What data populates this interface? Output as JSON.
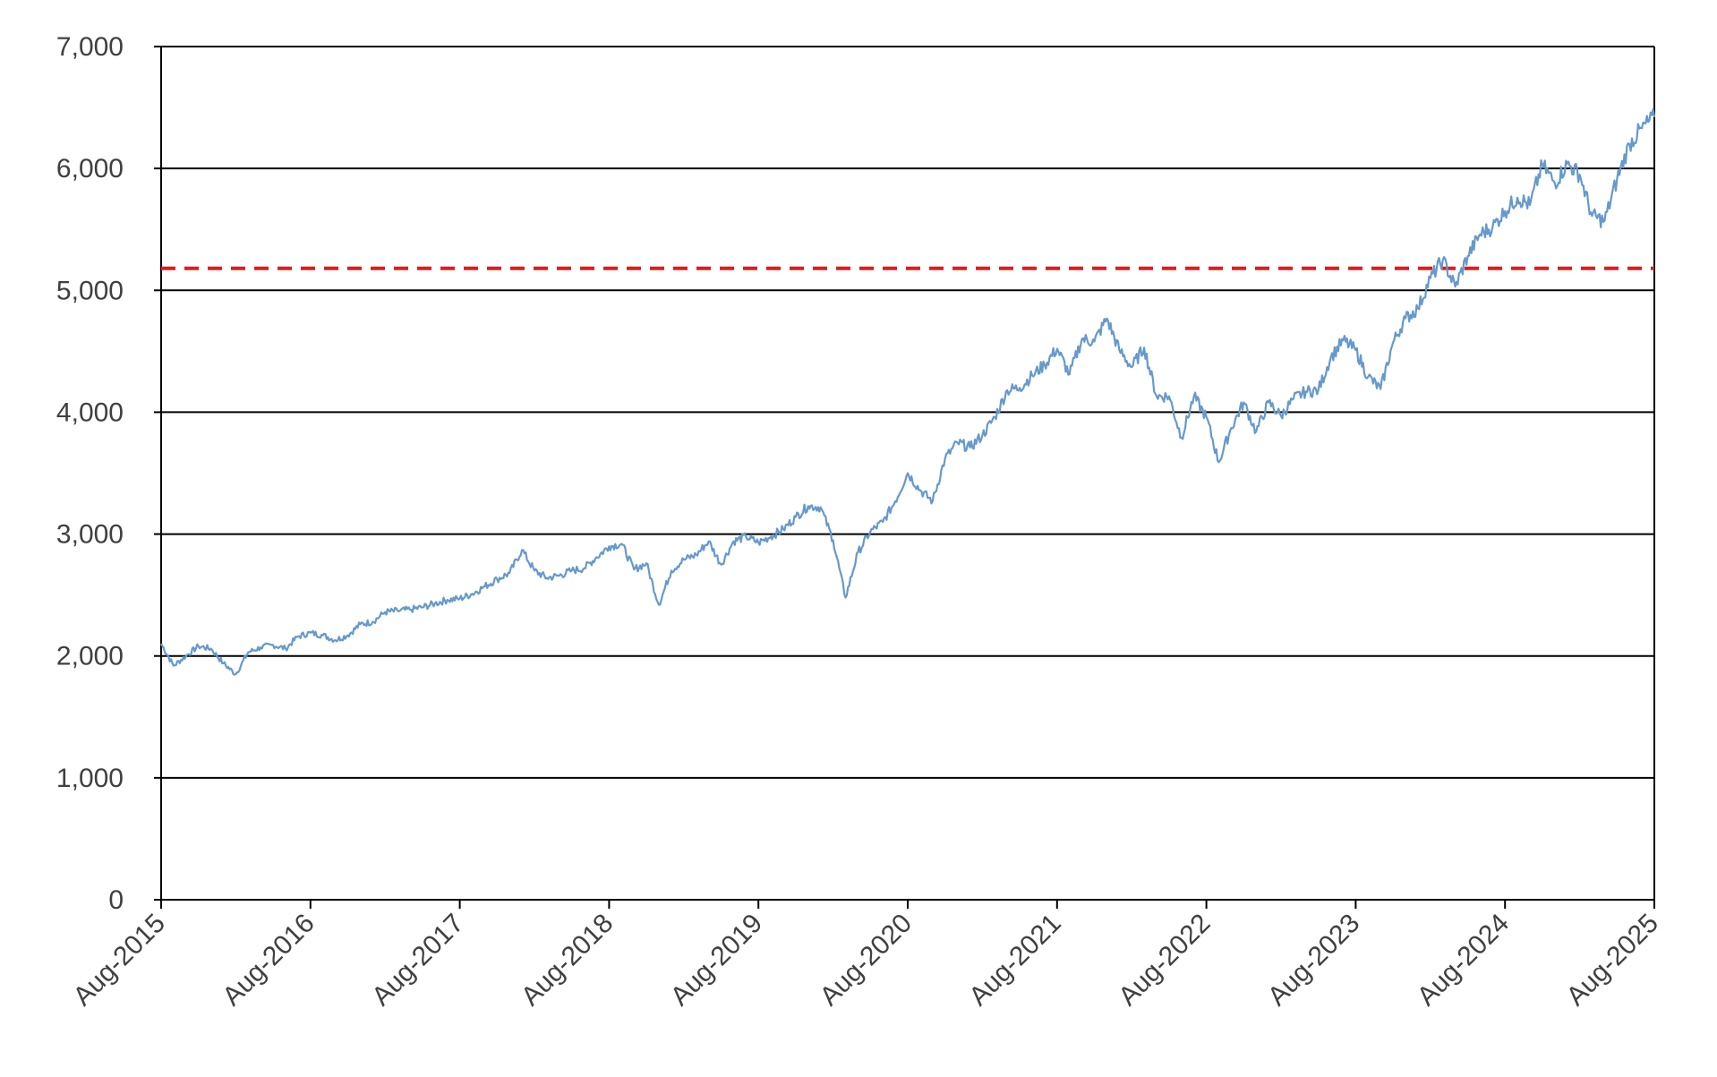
{
  "chart_data": {
    "type": "line",
    "title": "",
    "xlabel": "",
    "ylabel": "",
    "ylim": [
      0,
      7000
    ],
    "xlim": [
      "Aug-2015",
      "Aug-2025"
    ],
    "grid": "horizontal",
    "legend": "none",
    "y_ticks": [
      0,
      1000,
      2000,
      3000,
      4000,
      5000,
      6000,
      7000
    ],
    "y_tick_labels": [
      "0",
      "1,000",
      "2,000",
      "3,000",
      "4,000",
      "5,000",
      "6,000",
      "7,000"
    ],
    "x_tick_labels": [
      "Aug-2015",
      "Aug-2016",
      "Aug-2017",
      "Aug-2018",
      "Aug-2019",
      "Aug-2020",
      "Aug-2021",
      "Aug-2022",
      "Aug-2023",
      "Aug-2024",
      "Aug-2025"
    ],
    "reference_line": {
      "value": 5180,
      "color": "#d42020",
      "style": "dashed"
    },
    "series": [
      {
        "color": "#6699cc",
        "x": [
          "2015-08",
          "2015-09",
          "2015-10",
          "2015-11",
          "2015-12",
          "2016-01",
          "2016-02",
          "2016-03",
          "2016-04",
          "2016-05",
          "2016-06",
          "2016-07",
          "2016-08",
          "2016-09",
          "2016-10",
          "2016-11",
          "2016-12",
          "2017-01",
          "2017-02",
          "2017-03",
          "2017-04",
          "2017-05",
          "2017-06",
          "2017-07",
          "2017-08",
          "2017-09",
          "2017-10",
          "2017-11",
          "2017-12",
          "2018-01",
          "2018-02",
          "2018-03",
          "2018-04",
          "2018-05",
          "2018-06",
          "2018-07",
          "2018-08",
          "2018-09",
          "2018-10",
          "2018-11",
          "2018-12",
          "2019-01",
          "2019-02",
          "2019-03",
          "2019-04",
          "2019-05",
          "2019-06",
          "2019-07",
          "2019-08",
          "2019-09",
          "2019-10",
          "2019-11",
          "2019-12",
          "2020-01",
          "2020-02",
          "2020-03",
          "2020-04",
          "2020-05",
          "2020-06",
          "2020-07",
          "2020-08",
          "2020-09",
          "2020-10",
          "2020-11",
          "2020-12",
          "2021-01",
          "2021-02",
          "2021-03",
          "2021-04",
          "2021-05",
          "2021-06",
          "2021-07",
          "2021-08",
          "2021-09",
          "2021-10",
          "2021-11",
          "2021-12",
          "2022-01",
          "2022-02",
          "2022-03",
          "2022-04",
          "2022-05",
          "2022-06",
          "2022-07",
          "2022-08",
          "2022-09",
          "2022-10",
          "2022-11",
          "2022-12",
          "2023-01",
          "2023-02",
          "2023-03",
          "2023-04",
          "2023-05",
          "2023-06",
          "2023-07",
          "2023-08",
          "2023-09",
          "2023-10",
          "2023-11",
          "2023-12",
          "2024-01",
          "2024-02",
          "2024-03",
          "2024-04",
          "2024-05",
          "2024-06",
          "2024-07",
          "2024-08",
          "2024-09",
          "2024-10",
          "2024-11",
          "2024-12",
          "2025-01",
          "2025-02",
          "2025-03",
          "2025-04",
          "2025-05",
          "2025-06",
          "2025-07",
          "2025-08"
        ],
        "values": [
          2100,
          1920,
          2000,
          2080,
          2060,
          1940,
          1850,
          2030,
          2070,
          2090,
          2060,
          2160,
          2190,
          2170,
          2130,
          2170,
          2260,
          2280,
          2360,
          2370,
          2380,
          2400,
          2430,
          2460,
          2470,
          2510,
          2570,
          2630,
          2680,
          2870,
          2700,
          2640,
          2660,
          2700,
          2720,
          2810,
          2900,
          2920,
          2710,
          2760,
          2420,
          2700,
          2790,
          2830,
          2940,
          2750,
          2940,
          2980,
          2930,
          2980,
          3040,
          3140,
          3230,
          3220,
          2950,
          2480,
          2850,
          3020,
          3100,
          3270,
          3500,
          3360,
          3270,
          3620,
          3750,
          3710,
          3810,
          3960,
          4180,
          4200,
          4300,
          4390,
          4520,
          4310,
          4600,
          4580,
          4770,
          4510,
          4370,
          4530,
          4130,
          4130,
          3790,
          4130,
          3960,
          3590,
          3870,
          4080,
          3840,
          4080,
          3970,
          4110,
          4170,
          4180,
          4450,
          4590,
          4510,
          4290,
          4190,
          4570,
          4770,
          4850,
          5100,
          5250,
          5030,
          5280,
          5460,
          5520,
          5650,
          5760,
          5700,
          6030,
          5880,
          6040,
          5950,
          5610,
          5570,
          5910,
          6200,
          6330,
          6420
        ]
      }
    ]
  }
}
